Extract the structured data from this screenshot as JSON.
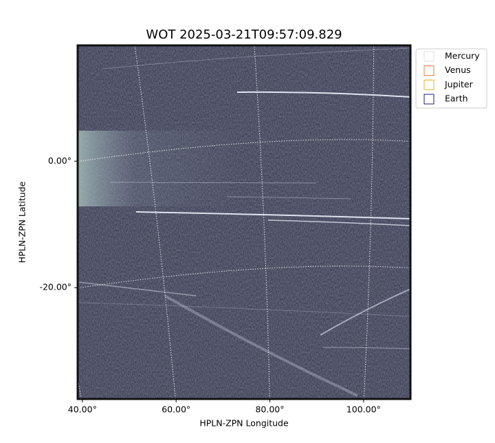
{
  "chart_data": {
    "type": "image",
    "title": "WOT 2025-03-21T09:57:09.829",
    "xlabel": "HPLN-ZPN Longitude",
    "ylabel": "HPLN-ZPN Latitude",
    "xlim": [
      39,
      110
    ],
    "ylim": [
      -37.6,
      18.3
    ],
    "xticks": [
      {
        "value": 40,
        "label": "40.00°"
      },
      {
        "value": 60,
        "label": "60.00°"
      },
      {
        "value": 80,
        "label": "80.00°"
      },
      {
        "value": 100,
        "label": "100.00°"
      }
    ],
    "yticks": [
      {
        "value": 0,
        "label": "0.00°"
      },
      {
        "value": -20,
        "label": "-20.00°"
      }
    ],
    "grid": true,
    "legend_position": "upper right",
    "legend_entries": [
      {
        "name": "Mercury",
        "color": "#dddddd"
      },
      {
        "name": "Venus",
        "color": "#e07b39"
      },
      {
        "name": "Jupiter",
        "color": "#e6b422"
      },
      {
        "name": "Earth",
        "color": "#1a1a7a"
      }
    ]
  }
}
